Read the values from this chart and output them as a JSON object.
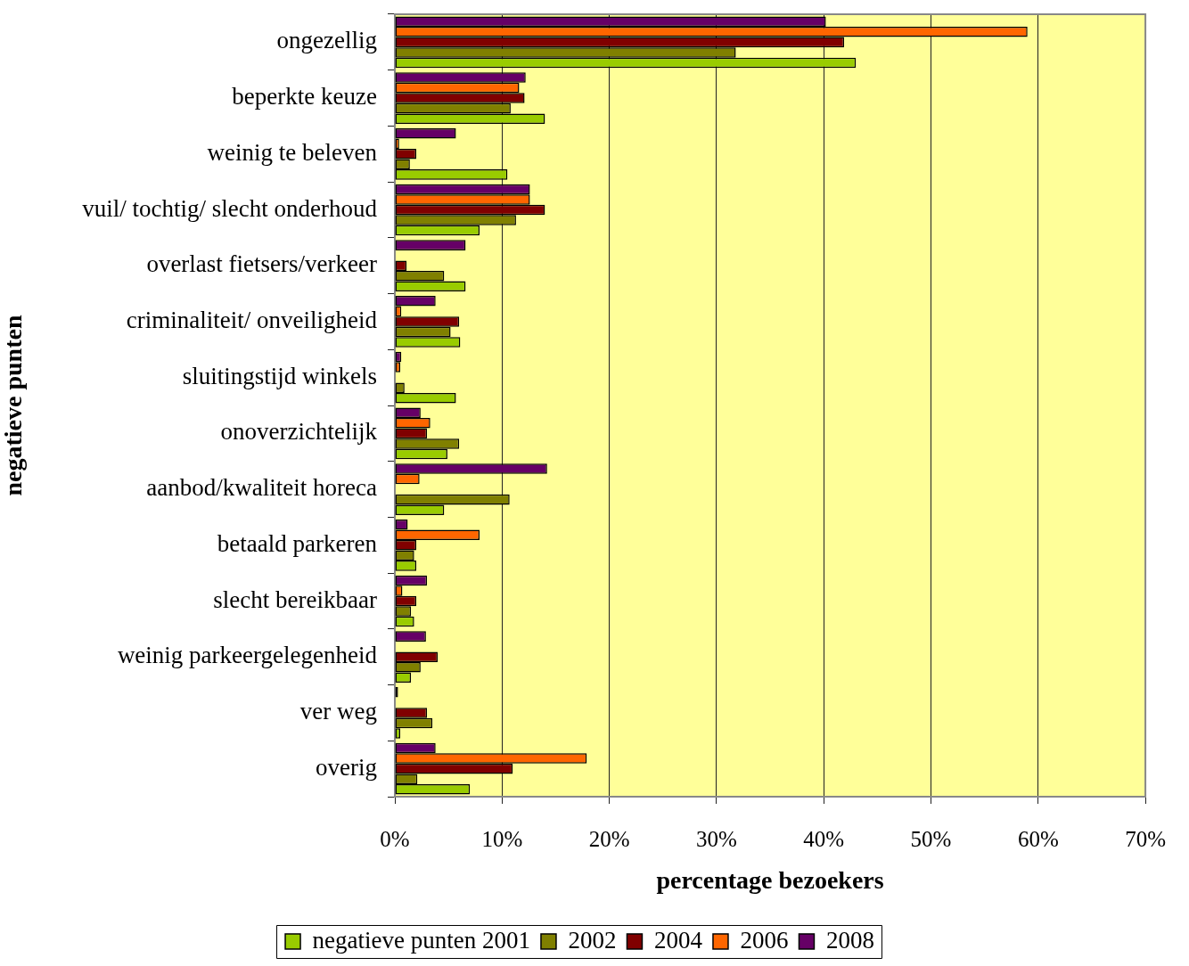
{
  "chart_data": {
    "type": "bar",
    "orientation": "horizontal",
    "xlabel": "percentage bezoekers",
    "ylabel": "negatieve punten",
    "categories": [
      "ongezellig",
      "beperkte keuze",
      "weinig te beleven",
      "vuil/ tochtig/ slecht onderhoud",
      "overlast fietsers/verkeer",
      "criminaliteit/ onveiligheid",
      "sluitingstijd winkels",
      "onoverzichtelijk",
      "aanbod/kwaliteit horeca",
      "betaald parkeren",
      "slecht bereikbaar",
      "weinig parkeergelegenheid",
      "ver weg",
      "overig"
    ],
    "series": [
      {
        "name": "negatieve punten 2001",
        "color": "#99cc00",
        "values": [
          43.0,
          14.0,
          10.5,
          7.9,
          6.6,
          6.1,
          5.7,
          4.9,
          4.6,
          2.0,
          1.8,
          1.5,
          0.5,
          7.0
        ]
      },
      {
        "name": "2002",
        "color": "#808000",
        "values": [
          31.8,
          10.8,
          1.4,
          11.3,
          4.6,
          5.2,
          0.9,
          6.0,
          10.7,
          1.8,
          1.5,
          2.4,
          3.5,
          2.1
        ]
      },
      {
        "name": "2004",
        "color": "#800000",
        "values": [
          41.9,
          12.1,
          2.0,
          14.0,
          1.1,
          6.0,
          null,
          3.0,
          null,
          2.0,
          2.0,
          4.0,
          3.0,
          11.0
        ]
      },
      {
        "name": "2006",
        "color": "#ff6600",
        "values": [
          59.0,
          11.6,
          0.4,
          12.6,
          null,
          0.6,
          0.5,
          3.3,
          2.3,
          7.9,
          0.7,
          null,
          null,
          17.9
        ]
      },
      {
        "name": "2008",
        "color": "#660066",
        "values": [
          40.2,
          12.2,
          5.7,
          12.6,
          6.6,
          3.8,
          0.6,
          2.4,
          14.2,
          1.2,
          3.0,
          2.9,
          0.3,
          3.8
        ]
      }
    ],
    "xlim": [
      0,
      70
    ],
    "xticks": [
      {
        "value": 0,
        "label": "0%"
      },
      {
        "value": 10,
        "label": "10%"
      },
      {
        "value": 20,
        "label": "20%"
      },
      {
        "value": 30,
        "label": "30%"
      },
      {
        "value": 40,
        "label": "40%"
      },
      {
        "value": 50,
        "label": "50%"
      },
      {
        "value": 60,
        "label": "60%"
      },
      {
        "value": 70,
        "label": "70%"
      }
    ],
    "grid": "x",
    "legend": "bottom"
  }
}
